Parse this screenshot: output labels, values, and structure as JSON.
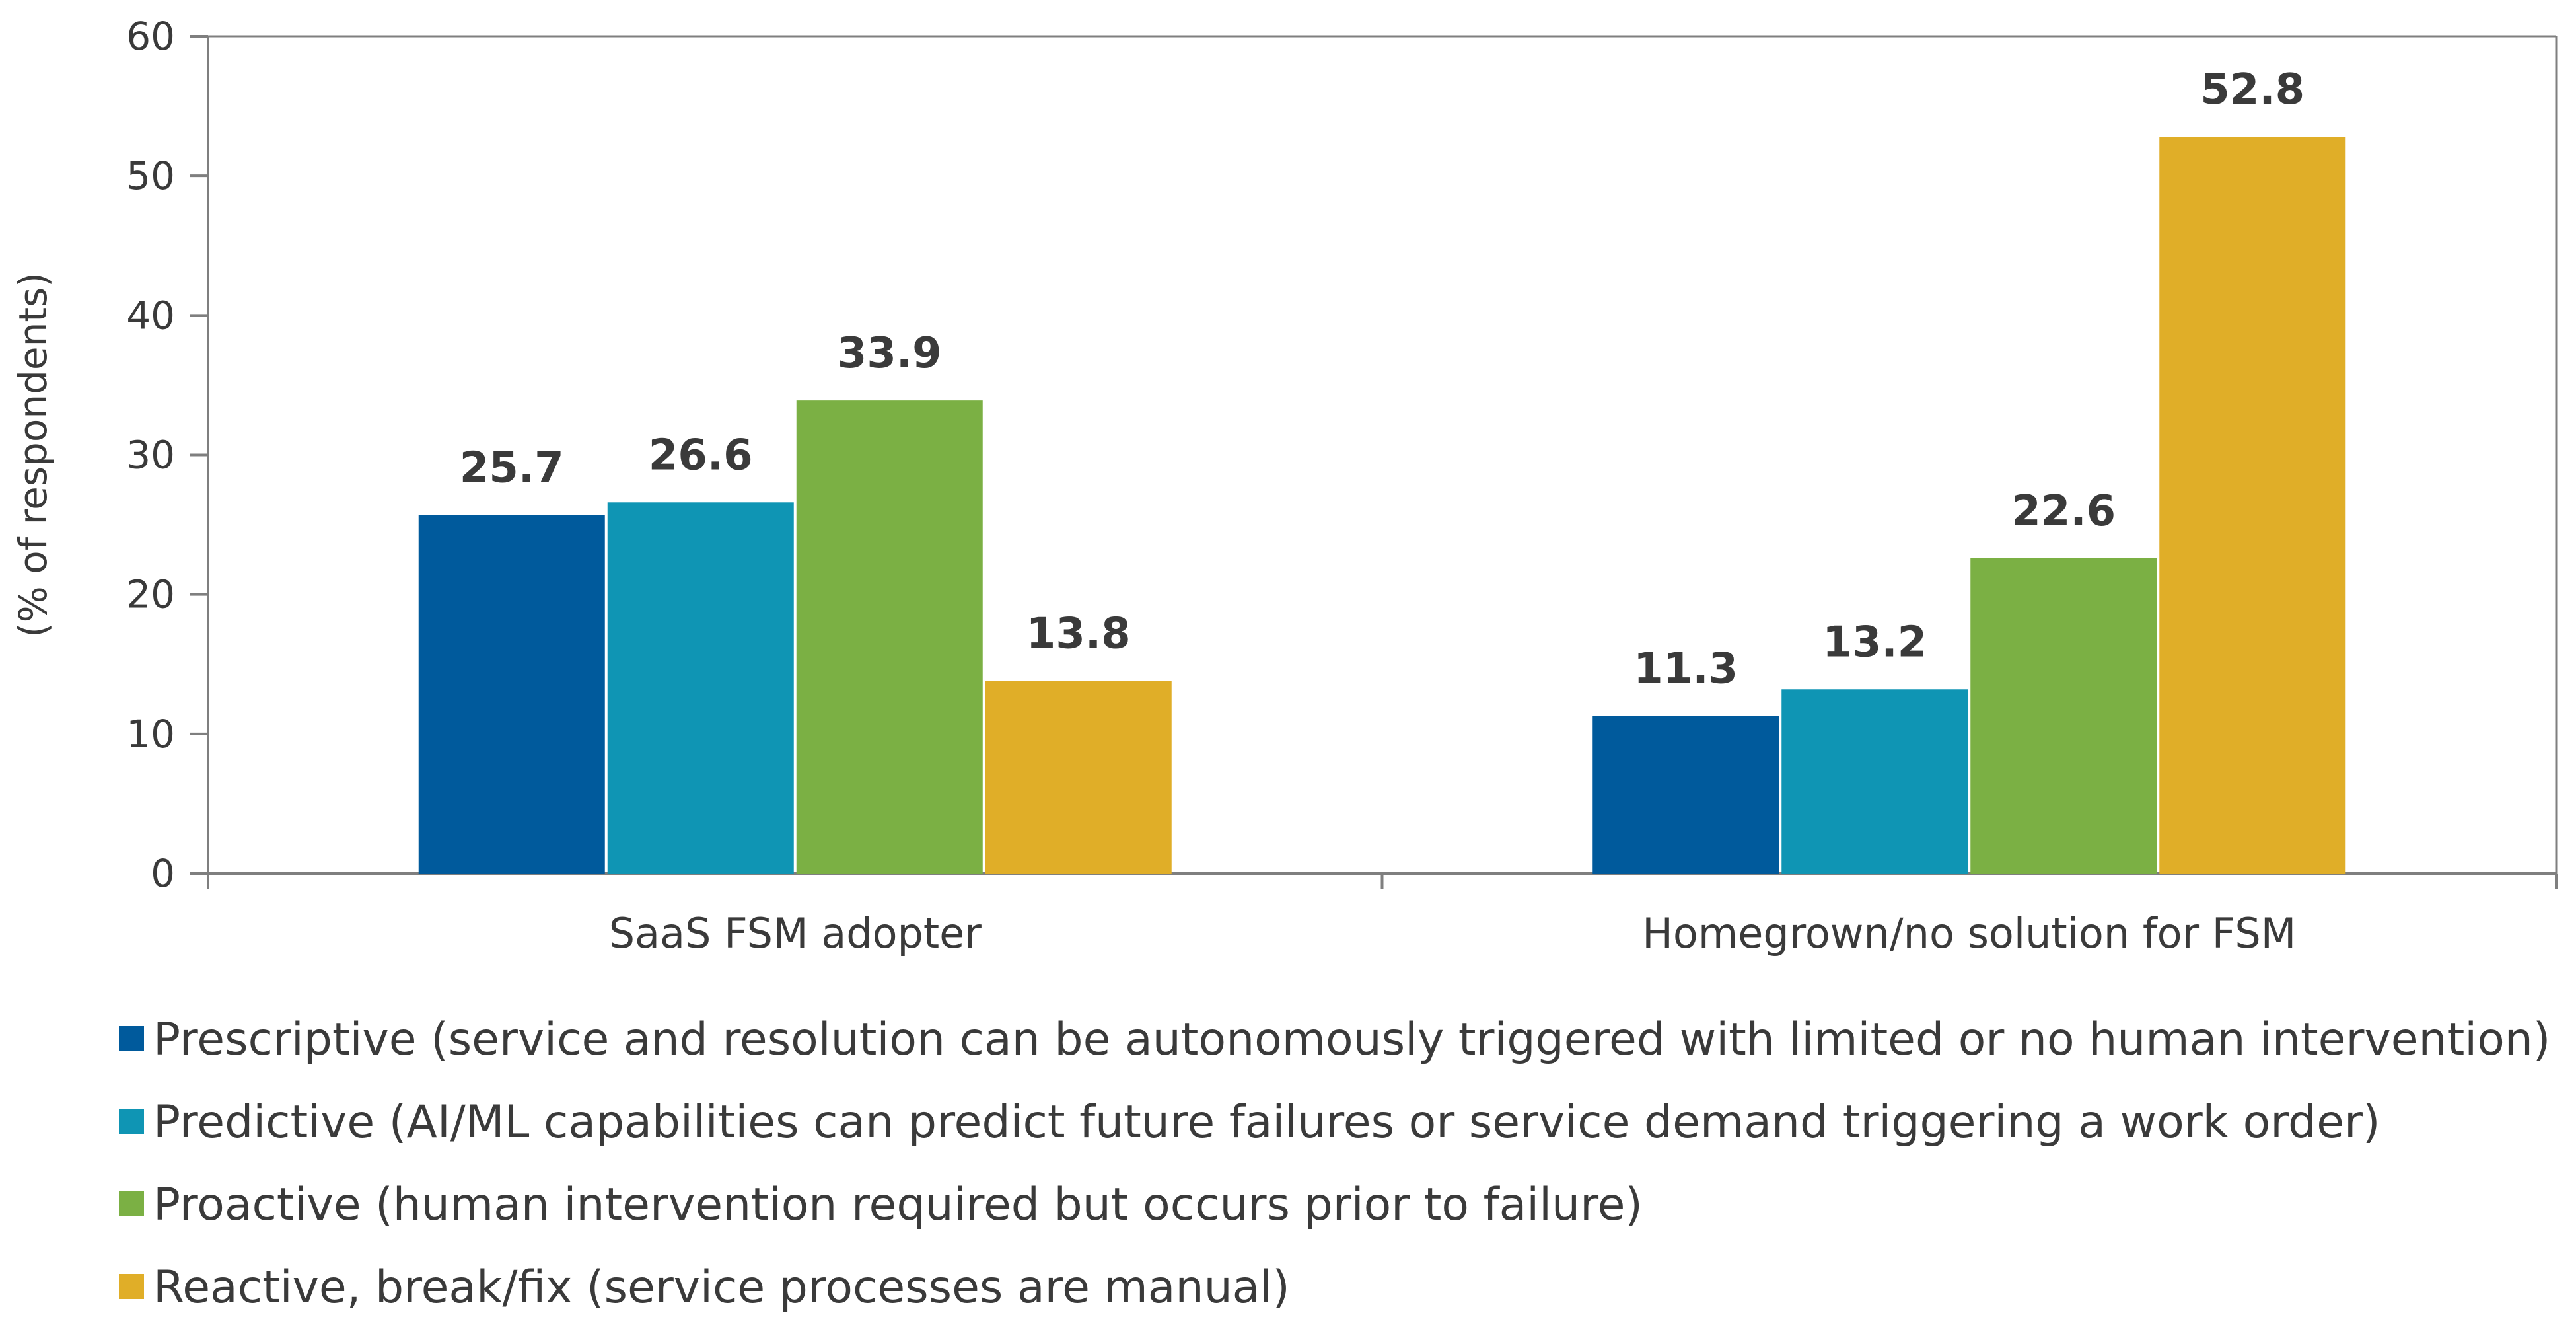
{
  "chart_data": {
    "type": "bar",
    "categories": [
      "SaaS FSM adopter",
      "Homegrown/no solution for FSM"
    ],
    "series": [
      {
        "name": "Prescriptive (service and resolution can be autonomously triggered with limited or no human intervention)",
        "values": [
          25.7,
          11.3
        ],
        "color": "#005a9c",
        "labels": [
          "25.7",
          "11.3"
        ]
      },
      {
        "name": "Predictive (AI/ML capabilities can predict future failures or service demand triggering a work order)",
        "values": [
          26.6,
          13.2
        ],
        "color": "#0f95b4",
        "labels": [
          "26.6",
          "13.2"
        ]
      },
      {
        "name": "Proactive (human intervention required but occurs prior to failure)",
        "values": [
          33.9,
          22.6
        ],
        "color": "#7bb044",
        "labels": [
          "33.9",
          "22.6"
        ]
      },
      {
        "name": "Reactive, break/fix (service processes are manual)",
        "values": [
          13.8,
          52.8
        ],
        "color": "#e0ae28",
        "labels": [
          "13.8",
          "52.8"
        ]
      }
    ],
    "ylabel": "(% of respondents)",
    "ylim": [
      0,
      60
    ],
    "yticks": [
      "0",
      "10",
      "20",
      "30",
      "40",
      "50",
      "60"
    ],
    "grid": false,
    "legend_position": "bottom"
  }
}
